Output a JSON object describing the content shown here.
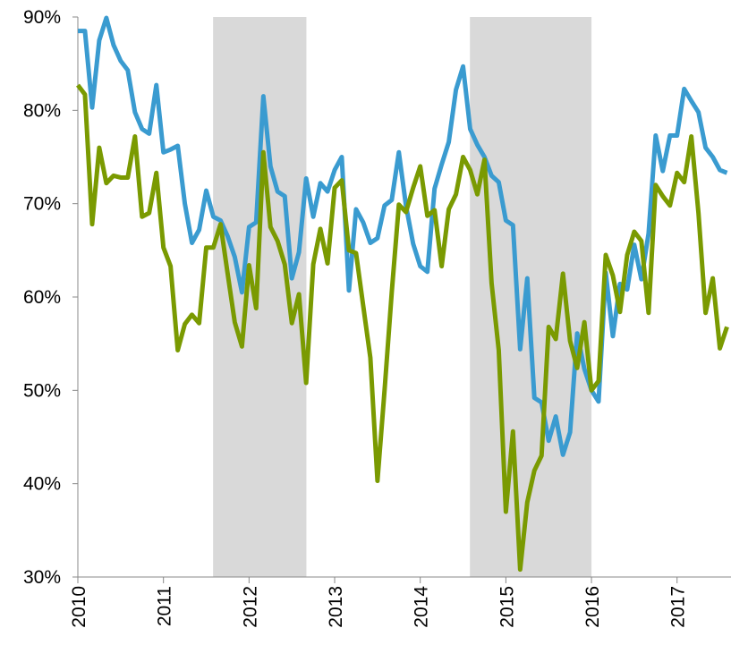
{
  "chart_data": {
    "type": "line",
    "x": [
      2010,
      2010.083,
      2010.167,
      2010.25,
      2010.333,
      2010.417,
      2010.5,
      2010.583,
      2010.667,
      2010.75,
      2010.833,
      2010.917,
      2011,
      2011.083,
      2011.167,
      2011.25,
      2011.333,
      2011.417,
      2011.5,
      2011.583,
      2011.667,
      2011.75,
      2011.833,
      2011.917,
      2012,
      2012.083,
      2012.167,
      2012.25,
      2012.333,
      2012.417,
      2012.5,
      2012.583,
      2012.667,
      2012.75,
      2012.833,
      2012.917,
      2013,
      2013.083,
      2013.167,
      2013.25,
      2013.333,
      2013.417,
      2013.5,
      2013.583,
      2013.667,
      2013.75,
      2013.833,
      2013.917,
      2014,
      2014.083,
      2014.167,
      2014.25,
      2014.333,
      2014.417,
      2014.5,
      2014.583,
      2014.667,
      2014.75,
      2014.833,
      2014.917,
      2015,
      2015.083,
      2015.167,
      2015.25,
      2015.333,
      2015.417,
      2015.5,
      2015.583,
      2015.667,
      2015.75,
      2015.833,
      2015.917,
      2016,
      2016.083,
      2016.167,
      2016.25,
      2016.333,
      2016.417,
      2016.5,
      2016.583,
      2016.667,
      2016.75,
      2016.833,
      2016.917,
      2017,
      2017.083,
      2017.167,
      2017.25,
      2017.333,
      2017.417,
      2017.5,
      2017.583
    ],
    "series": [
      {
        "color": "#3a9bd0",
        "values": [
          88.5,
          88.5,
          80.3,
          87.5,
          89.9,
          87,
          85.3,
          84.3,
          79.8,
          78,
          77.5,
          82.7,
          75.5,
          75.8,
          76.2,
          70,
          65.8,
          67.2,
          71.4,
          68.6,
          68.2,
          66.5,
          64.3,
          60.5,
          67.5,
          68,
          81.5,
          74,
          71.3,
          70.8,
          62,
          64.8,
          72.7,
          68.6,
          72.2,
          71.3,
          73.6,
          75,
          60.7,
          69.4,
          68,
          65.8,
          66.3,
          69.8,
          70.4,
          75.5,
          69.8,
          65.7,
          63.3,
          62.7,
          71.6,
          74.2,
          76.6,
          82.2,
          84.7,
          78,
          76.3,
          75,
          73,
          72.3,
          68.2,
          67.7,
          54.4,
          62,
          49.2,
          48.7,
          44.6,
          47.2,
          43.1,
          45.5,
          56.1,
          52.3,
          50,
          48.8,
          62.6,
          55.8,
          61.4,
          60.8,
          65.6,
          61.9,
          66.8,
          77.3,
          73.5,
          77.3,
          77.3,
          82.3,
          81,
          79.8,
          76,
          75,
          73.6,
          73.3
        ]
      },
      {
        "color": "#7a9a01",
        "values": [
          82.7,
          81.7,
          67.8,
          76,
          72.2,
          73,
          72.8,
          72.8,
          77.2,
          68.6,
          69,
          73.3,
          65.3,
          63.3,
          54.3,
          57.1,
          58.1,
          57.2,
          65.3,
          65.3,
          67.8,
          62.5,
          57.3,
          54.7,
          63.4,
          58.8,
          75.5,
          67.5,
          66,
          63.5,
          57.2,
          60.3,
          50.8,
          63.5,
          67.3,
          63.6,
          71.7,
          72.5,
          65,
          64.7,
          59.1,
          53.5,
          40.3,
          50,
          60.5,
          69.9,
          69.1,
          71.7,
          74,
          68.7,
          69.3,
          63.3,
          69.4,
          71,
          75,
          73.6,
          71,
          74.7,
          61.5,
          54.3,
          37,
          45.6,
          30.8,
          38,
          41.4,
          43,
          56.8,
          55.5,
          62.5,
          55.3,
          52.4,
          57.3,
          50,
          51,
          64.5,
          62.3,
          58.4,
          64.5,
          67,
          66,
          58.3,
          72,
          70.8,
          69.8,
          73.3,
          72.3,
          77.2,
          69,
          58.3,
          62,
          54.5,
          56.8
        ]
      }
    ],
    "shaded_regions": [
      [
        2011.58,
        2012.67
      ],
      [
        2014.58,
        2016.0
      ]
    ],
    "shade_color": "#d9d9d9",
    "xlim": [
      2010,
      2017.63
    ],
    "xticks": [
      2010,
      2011,
      2012,
      2013,
      2014,
      2015,
      2016,
      2017
    ],
    "ylim": [
      30,
      90
    ],
    "yticks": [
      {
        "value": 30,
        "label": "30%"
      },
      {
        "value": 40,
        "label": "40%"
      },
      {
        "value": 50,
        "label": "50%"
      },
      {
        "value": 60,
        "label": "60%"
      },
      {
        "value": 70,
        "label": "70%"
      },
      {
        "value": 80,
        "label": "80%"
      },
      {
        "value": 90,
        "label": "90%"
      }
    ]
  }
}
